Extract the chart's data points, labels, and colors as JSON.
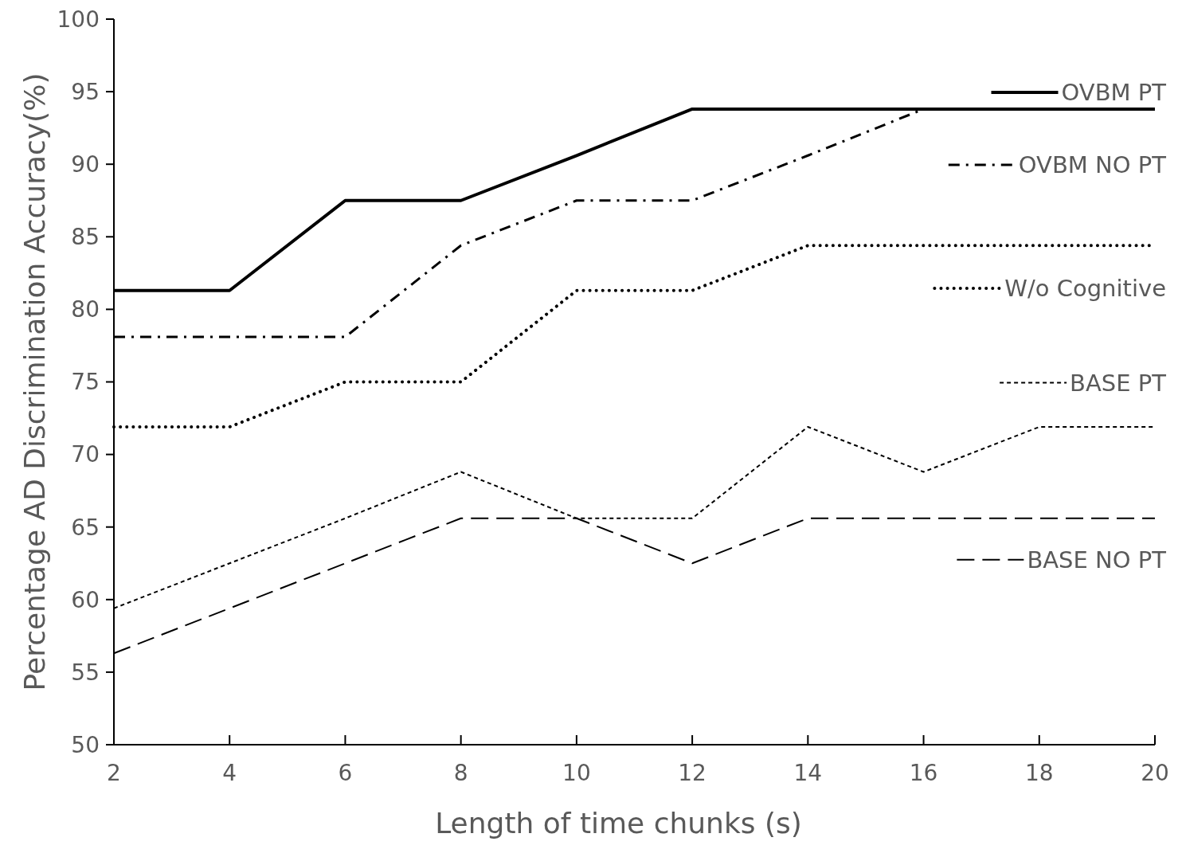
{
  "chart_data": {
    "type": "line",
    "xlabel": "Length of time chunks (s)",
    "ylabel": "Percentage AD Discrimination Accuracy(%)",
    "x": [
      2,
      4,
      6,
      8,
      10,
      12,
      14,
      16,
      18,
      20
    ],
    "xlim": [
      2,
      20
    ],
    "xticks": [
      2,
      4,
      6,
      8,
      10,
      12,
      14,
      16,
      18,
      20
    ],
    "ylim": [
      50,
      100
    ],
    "yticks": [
      50,
      55,
      60,
      65,
      70,
      75,
      80,
      85,
      90,
      95,
      100
    ],
    "grid": false,
    "legend": "right",
    "marker": "none",
    "series": [
      {
        "name": "OVBM PT",
        "color": "#000000",
        "line_style": "solid",
        "values": [
          81.3,
          81.3,
          87.5,
          87.5,
          90.6,
          93.8,
          93.8,
          93.8,
          93.8,
          93.8
        ]
      },
      {
        "name": "OVBM NO PT",
        "color": "#000000",
        "line_style": "dashdot",
        "values": [
          78.1,
          78.1,
          78.1,
          84.4,
          87.5,
          87.5,
          90.6,
          93.8,
          null,
          null
        ]
      },
      {
        "name": "W/o Cognitive",
        "color": "#000000",
        "line_style": "dotted",
        "values": [
          71.9,
          71.9,
          75,
          75,
          81.3,
          81.3,
          84.4,
          84.4,
          84.4,
          84.4
        ]
      },
      {
        "name": "BASE PT",
        "color": "#000000",
        "line_style": "dashed",
        "values": [
          59.4,
          62.5,
          65.6,
          68.8,
          65.6,
          65.6,
          71.9,
          68.8,
          71.9,
          71.9
        ]
      },
      {
        "name": "BASE NO PT",
        "color": "#000000",
        "line_style": "longdash",
        "values": [
          56.3,
          59.4,
          62.5,
          65.6,
          65.6,
          62.5,
          65.6,
          65.6,
          65.6,
          65.6
        ]
      }
    ]
  }
}
